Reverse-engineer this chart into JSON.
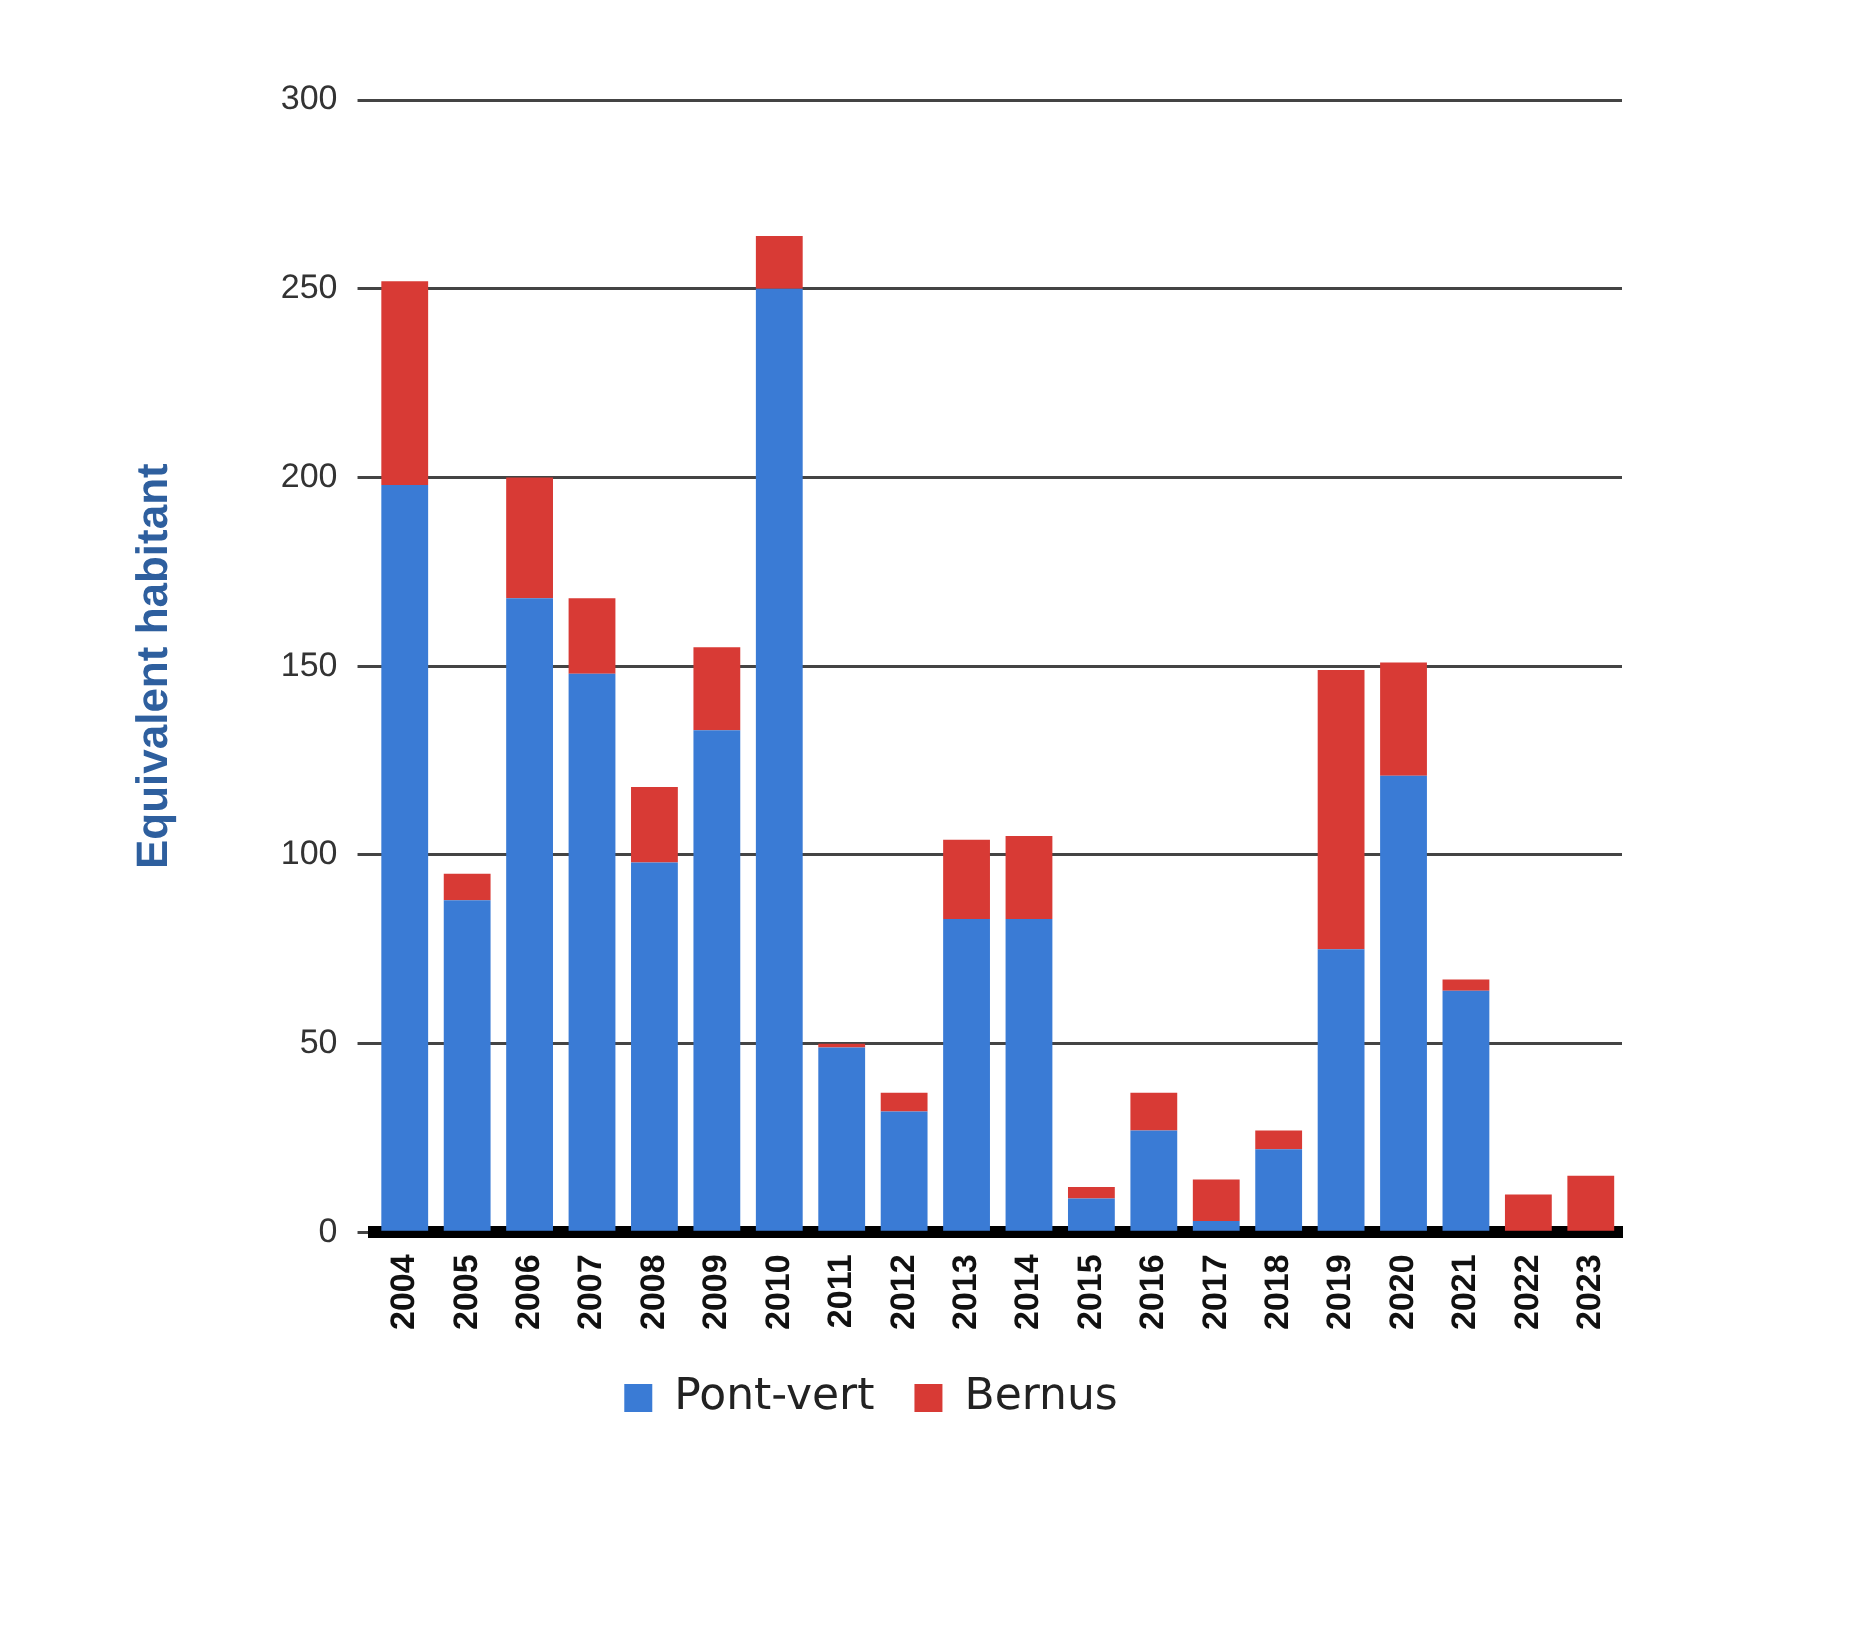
{
  "chart_data": {
    "type": "bar",
    "stacked": true,
    "ylabel": "Equivalent habitant",
    "categories": [
      "2004",
      "2005",
      "2006",
      "2007",
      "2008",
      "2009",
      "2010",
      "2011",
      "2012",
      "2013",
      "2014",
      "2015",
      "2016",
      "2017",
      "2018",
      "2019",
      "2020",
      "2021",
      "2022",
      "2023"
    ],
    "series": [
      {
        "name": "Pont-vert",
        "color": "#3a7bd5",
        "values": [
          198,
          88,
          168,
          148,
          98,
          133,
          250,
          49,
          32,
          83,
          83,
          9,
          27,
          3,
          22,
          75,
          121,
          64,
          0,
          0
        ]
      },
      {
        "name": "Bernus",
        "color": "#d83a35",
        "values": [
          54,
          7,
          32,
          20,
          20,
          22,
          14,
          1,
          5,
          21,
          22,
          3,
          10,
          11,
          5,
          74,
          30,
          3,
          10,
          15
        ]
      }
    ],
    "ylim": [
      0,
      300
    ],
    "yticks": [
      0,
      50,
      100,
      150,
      200,
      250,
      300
    ],
    "grid": "y",
    "legend": "bottom"
  }
}
